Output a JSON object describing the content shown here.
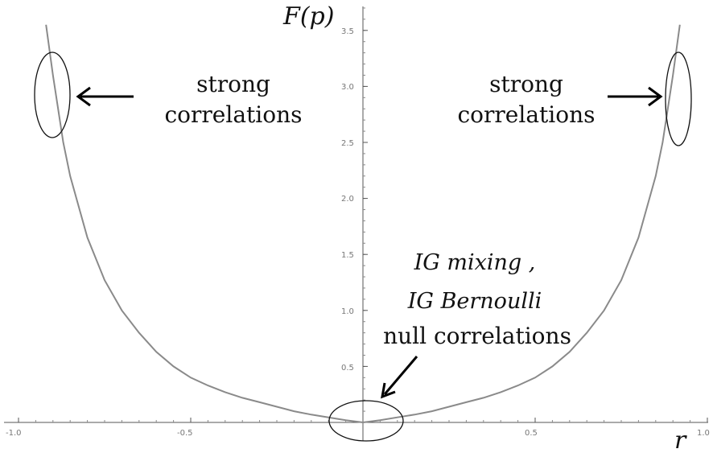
{
  "chart_data": {
    "type": "line",
    "xlabel": "r",
    "ylabel": "F(p)",
    "xlim": [
      -1.0,
      1.0
    ],
    "ylim": [
      0,
      3.7
    ],
    "x_ticks": [
      "-1.0",
      "-0.5",
      "0.5",
      "1.0"
    ],
    "y_ticks": [
      "0.5",
      "1.0",
      "1.5",
      "2.0",
      "2.5",
      "3.0",
      "3.5"
    ],
    "grid": false,
    "series": [
      {
        "x": [
          -0.92,
          -0.9,
          -0.87,
          -0.85,
          -0.8,
          -0.75,
          -0.7,
          -0.65,
          -0.6,
          -0.55,
          -0.5,
          -0.45,
          -0.4,
          -0.35,
          -0.3,
          -0.25,
          -0.2,
          -0.15,
          -0.1,
          -0.05,
          0.0,
          0.05,
          0.1,
          0.15,
          0.2,
          0.25,
          0.3,
          0.35,
          0.4,
          0.45,
          0.5,
          0.55,
          0.6,
          0.65,
          0.7,
          0.75,
          0.8,
          0.85,
          0.87,
          0.9,
          0.92
        ],
        "y": [
          3.55,
          3.1,
          2.5,
          2.2,
          1.65,
          1.27,
          1.0,
          0.8,
          0.63,
          0.5,
          0.4,
          0.33,
          0.27,
          0.22,
          0.18,
          0.14,
          0.1,
          0.07,
          0.045,
          0.02,
          0.0,
          0.02,
          0.045,
          0.07,
          0.1,
          0.14,
          0.18,
          0.22,
          0.27,
          0.33,
          0.4,
          0.5,
          0.63,
          0.8,
          1.0,
          1.27,
          1.65,
          2.2,
          2.5,
          3.1,
          3.55
        ]
      }
    ],
    "annotations": [
      {
        "lines": [
          "strong",
          "correlations"
        ],
        "x": -0.91,
        "y": 2.9
      },
      {
        "lines": [
          "strong",
          "correlations"
        ],
        "x": 0.91,
        "y": 2.9
      },
      {
        "lines": [
          "IG mixing ,",
          "IG Bernoulli",
          "null correlations"
        ],
        "x": 0.0,
        "y": 0.0
      }
    ]
  }
}
